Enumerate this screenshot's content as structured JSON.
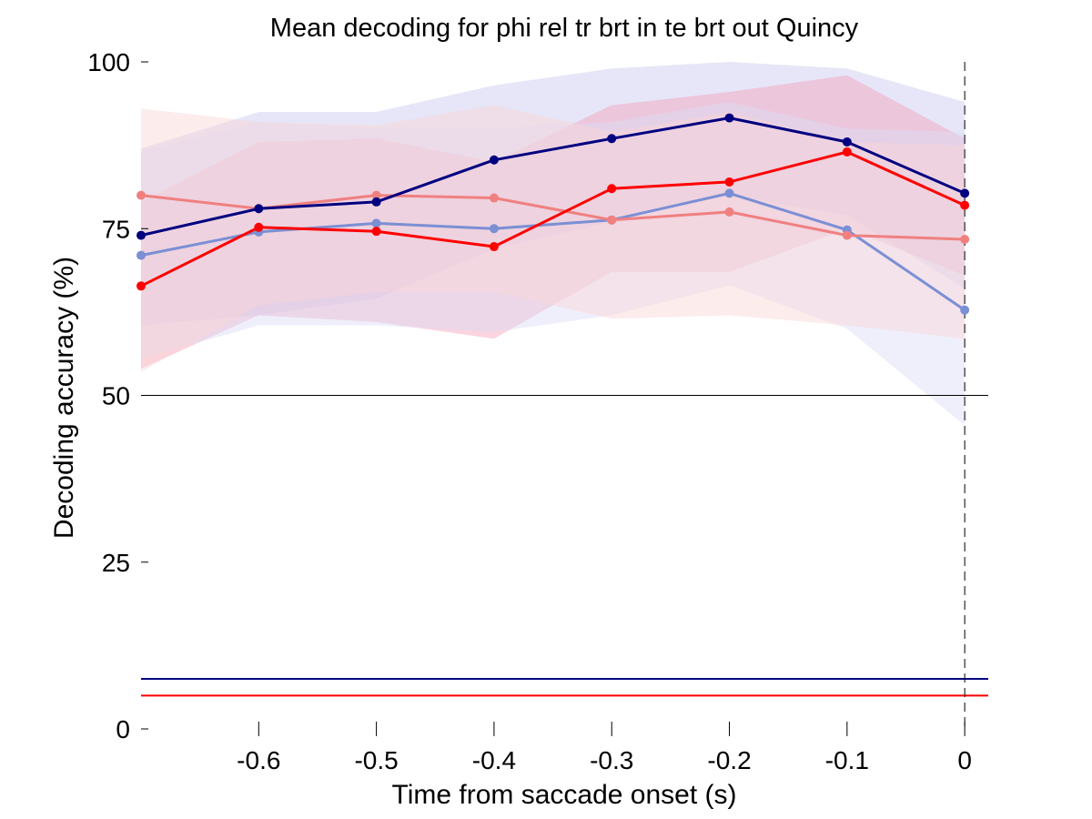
{
  "chart_data": {
    "type": "line",
    "title": "Mean decoding for phi rel tr brt in te brt out  Quincy",
    "xlabel": "Time from saccade onset (s)",
    "ylabel": "Decoding accuracy (%)",
    "xlim": [
      -0.7,
      0.02
    ],
    "ylim": [
      0,
      100
    ],
    "x_ticks": [
      -0.6,
      -0.5,
      -0.4,
      -0.3,
      -0.2,
      -0.1,
      0
    ],
    "x_tick_labels": [
      "-0.6",
      "-0.5",
      "-0.4",
      "-0.3",
      "-0.2",
      "-0.1",
      "0"
    ],
    "y_ticks": [
      0,
      25,
      50,
      75,
      100
    ],
    "y_tick_labels": [
      "0",
      "25",
      "50",
      "75",
      "100"
    ],
    "x": [
      -0.7,
      -0.6,
      -0.5,
      -0.4,
      -0.3,
      -0.2,
      -0.1,
      0
    ],
    "grid": false,
    "legend": "none",
    "chance_level": 50,
    "event_line_x": 0,
    "series": [
      {
        "color": "#000080",
        "values": [
          74,
          78,
          79,
          85.3,
          88.5,
          91.6,
          88,
          80.3
        ],
        "band_upper": [
          87,
          92.5,
          92.5,
          96.5,
          99,
          100,
          99,
          94
        ],
        "band_lower": [
          60.5,
          62,
          64.5,
          72,
          76,
          80,
          77,
          66
        ],
        "band_color": "#c8c8f0"
      },
      {
        "color": "#ff0000",
        "values": [
          66.4,
          75.2,
          74.6,
          72.3,
          81,
          82,
          86.5,
          78.5
        ],
        "band_upper": [
          79,
          88,
          88.5,
          85,
          93.5,
          95.5,
          98,
          88.5
        ],
        "band_lower": [
          54,
          62,
          61,
          58.5,
          68.5,
          68.5,
          75,
          68
        ],
        "band_color": "#f4a0b8"
      },
      {
        "color": "#7b8fd4",
        "values": [
          71,
          74.5,
          75.8,
          75,
          76.3,
          80.3,
          74.8,
          62.8
        ],
        "band_upper": [
          86.5,
          91,
          90,
          90,
          91,
          94,
          90,
          89.5
        ],
        "band_lower": [
          55.5,
          60.5,
          60.5,
          59.5,
          62,
          66.5,
          60,
          45.5
        ],
        "band_color": "#dcdcf6"
      },
      {
        "color": "#f08080",
        "values": [
          80,
          78,
          80,
          79.6,
          76.3,
          77.5,
          74,
          73.4
        ],
        "band_upper": [
          93,
          91,
          90.5,
          93.5,
          89.5,
          92.5,
          88,
          87.5
        ],
        "band_lower": [
          53.5,
          63.5,
          65.5,
          65.5,
          61.5,
          62,
          60.5,
          58.5
        ],
        "band_color": "#fad4d4"
      }
    ],
    "threshold_lines": [
      {
        "y": 7.5,
        "color": "#000080"
      },
      {
        "y": 5,
        "color": "#ff0000"
      }
    ]
  }
}
